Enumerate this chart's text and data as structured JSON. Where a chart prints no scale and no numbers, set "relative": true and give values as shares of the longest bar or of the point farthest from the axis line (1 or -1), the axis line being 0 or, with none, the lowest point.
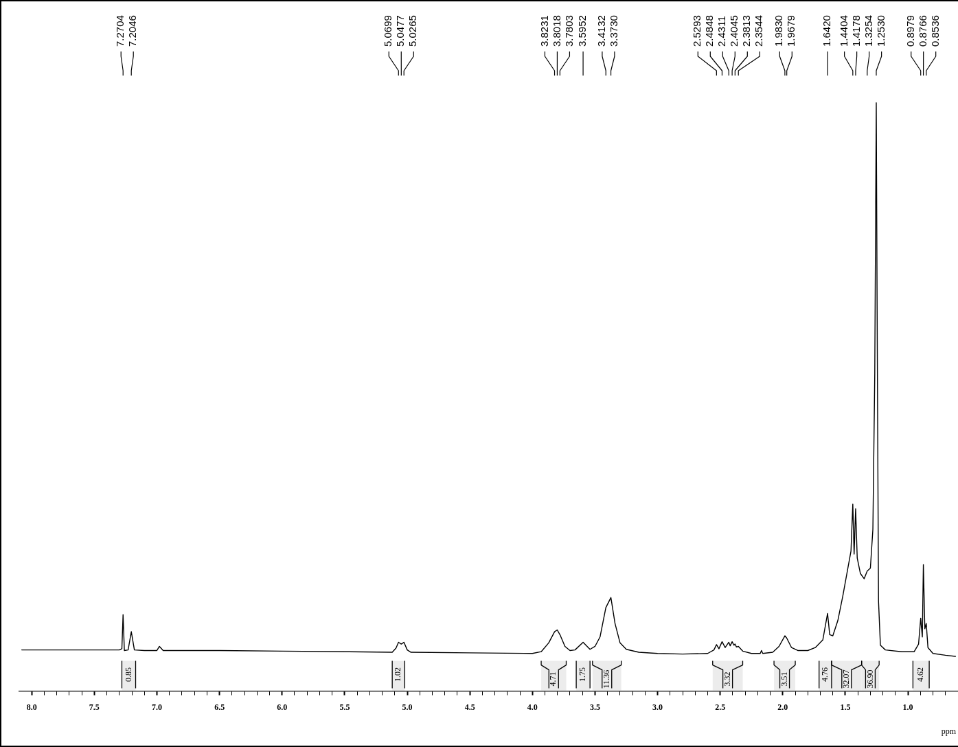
{
  "chart_data": {
    "type": "line",
    "relative": true,
    "xlabel": "ppm",
    "xlim": [
      8.1,
      0.6
    ],
    "xticks": [
      {
        "value": 8.0,
        "label": "8.0"
      },
      {
        "value": 7.9,
        "label": null
      },
      {
        "value": 7.8,
        "label": null
      },
      {
        "value": 7.7,
        "label": null
      },
      {
        "value": 7.6,
        "label": null
      },
      {
        "value": 7.5,
        "label": "7.5"
      },
      {
        "value": 7.4,
        "label": null
      },
      {
        "value": 7.3,
        "label": null
      },
      {
        "value": 7.2,
        "label": null
      },
      {
        "value": 7.1,
        "label": null
      },
      {
        "value": 7.0,
        "label": "7.0"
      },
      {
        "value": 6.9,
        "label": null
      },
      {
        "value": 6.8,
        "label": null
      },
      {
        "value": 6.7,
        "label": null
      },
      {
        "value": 6.6,
        "label": null
      },
      {
        "value": 6.5,
        "label": "6.5"
      },
      {
        "value": 6.4,
        "label": null
      },
      {
        "value": 6.3,
        "label": null
      },
      {
        "value": 6.2,
        "label": null
      },
      {
        "value": 6.1,
        "label": null
      },
      {
        "value": 6.0,
        "label": "6.0"
      },
      {
        "value": 5.9,
        "label": null
      },
      {
        "value": 5.8,
        "label": null
      },
      {
        "value": 5.7,
        "label": null
      },
      {
        "value": 5.6,
        "label": null
      },
      {
        "value": 5.5,
        "label": "5.5"
      },
      {
        "value": 5.4,
        "label": null
      },
      {
        "value": 5.3,
        "label": null
      },
      {
        "value": 5.2,
        "label": null
      },
      {
        "value": 5.1,
        "label": null
      },
      {
        "value": 5.0,
        "label": "5.0"
      },
      {
        "value": 4.9,
        "label": null
      },
      {
        "value": 4.8,
        "label": null
      },
      {
        "value": 4.7,
        "label": null
      },
      {
        "value": 4.6,
        "label": null
      },
      {
        "value": 4.5,
        "label": "4.5"
      },
      {
        "value": 4.4,
        "label": null
      },
      {
        "value": 4.3,
        "label": null
      },
      {
        "value": 4.2,
        "label": null
      },
      {
        "value": 4.1,
        "label": null
      },
      {
        "value": 4.0,
        "label": "4.0"
      },
      {
        "value": 3.9,
        "label": null
      },
      {
        "value": 3.8,
        "label": null
      },
      {
        "value": 3.7,
        "label": null
      },
      {
        "value": 3.6,
        "label": null
      },
      {
        "value": 3.5,
        "label": "3.5"
      },
      {
        "value": 3.4,
        "label": null
      },
      {
        "value": 3.3,
        "label": null
      },
      {
        "value": 3.2,
        "label": null
      },
      {
        "value": 3.1,
        "label": null
      },
      {
        "value": 3.0,
        "label": "3.0"
      },
      {
        "value": 2.9,
        "label": null
      },
      {
        "value": 2.8,
        "label": null
      },
      {
        "value": 2.7,
        "label": null
      },
      {
        "value": 2.6,
        "label": null
      },
      {
        "value": 2.5,
        "label": "2.5"
      },
      {
        "value": 2.4,
        "label": null
      },
      {
        "value": 2.3,
        "label": null
      },
      {
        "value": 2.2,
        "label": null
      },
      {
        "value": 2.1,
        "label": null
      },
      {
        "value": 2.0,
        "label": "2.0"
      },
      {
        "value": 1.9,
        "label": null
      },
      {
        "value": 1.8,
        "label": null
      },
      {
        "value": 1.7,
        "label": null
      },
      {
        "value": 1.6,
        "label": null
      },
      {
        "value": 1.5,
        "label": "1.5"
      },
      {
        "value": 1.4,
        "label": null
      },
      {
        "value": 1.3,
        "label": null
      },
      {
        "value": 1.2,
        "label": null
      },
      {
        "value": 1.1,
        "label": null
      },
      {
        "value": 1.0,
        "label": "1.0"
      },
      {
        "value": 0.9,
        "label": null
      },
      {
        "value": 0.8,
        "label": null
      },
      {
        "value": 0.7,
        "label": null
      }
    ],
    "x": [
      8.08,
      7.6,
      7.3,
      7.28,
      7.2704,
      7.26,
      7.23,
      7.2046,
      7.18,
      7.1,
      7.0,
      6.98,
      6.95,
      6.5,
      6.0,
      5.5,
      5.12,
      5.09,
      5.0699,
      5.0477,
      5.0265,
      5.0,
      4.97,
      4.5,
      4.0,
      3.93,
      3.87,
      3.8231,
      3.8018,
      3.7803,
      3.74,
      3.7,
      3.66,
      3.5952,
      3.54,
      3.5,
      3.46,
      3.4132,
      3.373,
      3.34,
      3.3,
      3.25,
      3.15,
      3.0,
      2.8,
      2.6,
      2.55,
      2.5293,
      2.51,
      2.4848,
      2.46,
      2.4311,
      2.42,
      2.4045,
      2.39,
      2.3813,
      2.37,
      2.3544,
      2.32,
      2.25,
      2.18,
      2.17,
      2.16,
      2.08,
      2.03,
      1.983,
      1.9679,
      1.93,
      1.88,
      1.8,
      1.74,
      1.68,
      1.642,
      1.625,
      1.6,
      1.56,
      1.52,
      1.48,
      1.455,
      1.4404,
      1.43,
      1.4178,
      1.405,
      1.38,
      1.35,
      1.3254,
      1.3,
      1.28,
      1.265,
      1.253,
      1.245,
      1.235,
      1.22,
      1.18,
      1.05,
      0.95,
      0.915,
      0.8979,
      0.885,
      0.8766,
      0.865,
      0.8536,
      0.84,
      0.8,
      0.7,
      0.62
    ],
    "series": [
      {
        "color": "#000000",
        "values": [
          0.07,
          0.07,
          0.07,
          0.072,
          0.13,
          0.069,
          0.07,
          0.101,
          0.07,
          0.069,
          0.069,
          0.076,
          0.069,
          0.069,
          0.068,
          0.067,
          0.066,
          0.073,
          0.083,
          0.08,
          0.083,
          0.07,
          0.066,
          0.065,
          0.064,
          0.067,
          0.082,
          0.101,
          0.104,
          0.096,
          0.076,
          0.069,
          0.07,
          0.083,
          0.071,
          0.076,
          0.092,
          0.142,
          0.159,
          0.115,
          0.082,
          0.071,
          0.066,
          0.064,
          0.063,
          0.064,
          0.07,
          0.079,
          0.072,
          0.084,
          0.074,
          0.083,
          0.077,
          0.084,
          0.078,
          0.08,
          0.075,
          0.076,
          0.068,
          0.064,
          0.064,
          0.069,
          0.064,
          0.066,
          0.076,
          0.094,
          0.09,
          0.074,
          0.069,
          0.069,
          0.074,
          0.087,
          0.132,
          0.096,
          0.094,
          0.12,
          0.162,
          0.209,
          0.238,
          0.318,
          0.233,
          0.31,
          0.226,
          0.2,
          0.191,
          0.204,
          0.209,
          0.275,
          0.539,
          1.0,
          0.595,
          0.153,
          0.078,
          0.07,
          0.067,
          0.067,
          0.08,
          0.124,
          0.092,
          0.215,
          0.106,
          0.115,
          0.074,
          0.064,
          0.061,
          0.059
        ]
      }
    ],
    "annotations": [
      {
        "text": "7.2704",
        "x": 7.2704
      },
      {
        "text": "7.2046",
        "x": 7.2046
      },
      {
        "text": "5.0699",
        "x": 5.0699
      },
      {
        "text": "5.0477",
        "x": 5.0477
      },
      {
        "text": "5.0265",
        "x": 5.0265
      },
      {
        "text": "3.8231",
        "x": 3.8231
      },
      {
        "text": "3.8018",
        "x": 3.8018
      },
      {
        "text": "3.7803",
        "x": 3.7803
      },
      {
        "text": "3.5952",
        "x": 3.5952
      },
      {
        "text": "3.4132",
        "x": 3.4132
      },
      {
        "text": "3.3730",
        "x": 3.373
      },
      {
        "text": "2.5293",
        "x": 2.5293
      },
      {
        "text": "2.4848",
        "x": 2.4848
      },
      {
        "text": "2.4311",
        "x": 2.4311
      },
      {
        "text": "2.4045",
        "x": 2.4045
      },
      {
        "text": "2.3813",
        "x": 2.3813
      },
      {
        "text": "2.3544",
        "x": 2.3544
      },
      {
        "text": "1.9830",
        "x": 1.983
      },
      {
        "text": "1.9679",
        "x": 1.9679
      },
      {
        "text": "1.6420",
        "x": 1.642
      },
      {
        "text": "1.4404",
        "x": 1.4404
      },
      {
        "text": "1.4178",
        "x": 1.4178
      },
      {
        "text": "1.3254",
        "x": 1.3254
      },
      {
        "text": "1.2530",
        "x": 1.253
      },
      {
        "text": "0.8979",
        "x": 0.8979
      },
      {
        "text": "0.8766",
        "x": 0.8766
      },
      {
        "text": "0.8536",
        "x": 0.8536
      }
    ],
    "bands": [
      {
        "axis": "x",
        "from": 7.28,
        "to": 7.17,
        "label": "0.85"
      },
      {
        "axis": "x",
        "from": 5.12,
        "to": 5.02,
        "label": "1.02"
      },
      {
        "axis": "x",
        "from": 3.93,
        "to": 3.73,
        "label": "4.71"
      },
      {
        "axis": "x",
        "from": 3.65,
        "to": 3.54,
        "label": "1.75"
      },
      {
        "axis": "x",
        "from": 3.52,
        "to": 3.29,
        "label": "11.36"
      },
      {
        "axis": "x",
        "from": 2.56,
        "to": 2.32,
        "label": "3.32"
      },
      {
        "axis": "x",
        "from": 2.07,
        "to": 1.9,
        "label": "3.51"
      },
      {
        "axis": "x",
        "from": 1.71,
        "to": 1.61,
        "label": "4.76"
      },
      {
        "axis": "x",
        "from": 1.61,
        "to": 1.37,
        "label": "32.07"
      },
      {
        "axis": "x",
        "from": 1.37,
        "to": 1.23,
        "label": "36.90"
      },
      {
        "axis": "x",
        "from": 0.96,
        "to": 0.83,
        "label": "4.62"
      }
    ]
  }
}
